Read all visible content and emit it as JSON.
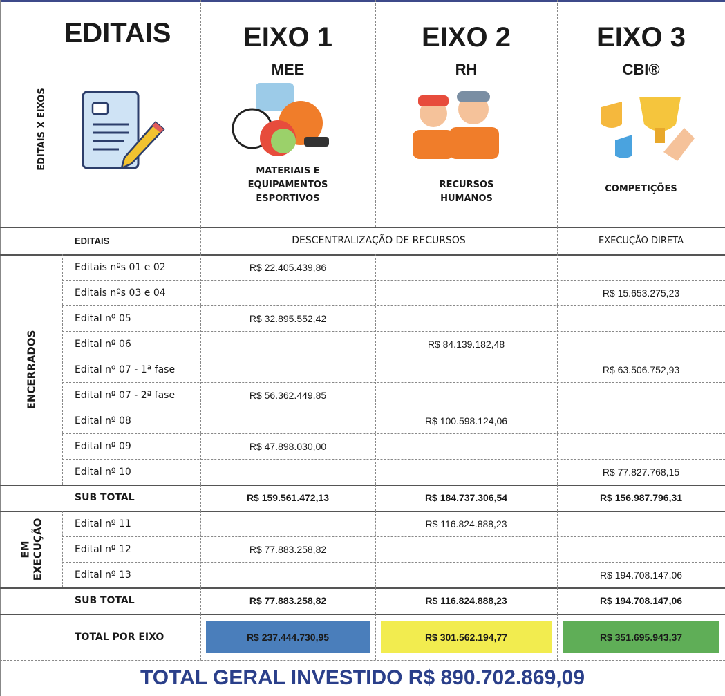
{
  "header": {
    "side_label": "EDITAIS X EIXOS",
    "editais_title": "EDITAIS",
    "axes": [
      {
        "title": "EIXO 1",
        "code": "MEE",
        "description": "MATERIAIS E EQUIPAMENTOS ESPORTIVOS"
      },
      {
        "title": "EIXO 2",
        "code": "RH",
        "description": "RECURSOS HUMANOS"
      },
      {
        "title": "EIXO 3",
        "code": "CBI®",
        "description": "COMPETIÇÕES"
      }
    ]
  },
  "columns": {
    "editais": "EDITAIS",
    "decentralization": "DESCENTRALIZAÇÃO DE RECURSOS",
    "direct": "EXECUÇÃO DIRETA"
  },
  "groups": [
    {
      "label": "ENCERRADOS",
      "rows": [
        {
          "label": "Editais nºs 01 e 02",
          "eixo_1": "R$ 22.405.439,86"
        },
        {
          "label": "Editais nºs 03 e 04",
          "eixo_3": "R$ 15.653.275,23"
        },
        {
          "label": "Edital nº 05",
          "eixo_1": "R$ 32.895.552,42"
        },
        {
          "label": "Edital nº 06",
          "eixo_2": "R$ 84.139.182,48"
        },
        {
          "label": "Edital nº 07 - 1ª fase",
          "eixo_3": "R$ 63.506.752,93"
        },
        {
          "label": "Edital nº 07 - 2ª fase",
          "eixo_1": "R$ 56.362.449,85"
        },
        {
          "label": "Edital nº 08",
          "eixo_2": "R$ 100.598.124,06"
        },
        {
          "label": "Edital nº 09",
          "eixo_1": "R$ 47.898.030,00"
        },
        {
          "label": "Edital nº 10",
          "eixo_3": "R$ 77.827.768,15"
        }
      ],
      "subtotal": {
        "label": "SUB TOTAL",
        "eixo_1": "R$ 159.561.472,13",
        "eixo_2": "R$ 184.737.306,54",
        "eixo_3": "R$ 156.987.796,31"
      }
    },
    {
      "label": "EM EXECUÇÃO",
      "rows": [
        {
          "label": "Edital nº 11",
          "eixo_2": "R$ 116.824.888,23"
        },
        {
          "label": "Edital nº 12",
          "eixo_1": "R$ 77.883.258,82"
        },
        {
          "label": "Edital nº 13",
          "eixo_3": "R$ 194.708.147,06"
        }
      ],
      "subtotal": {
        "label": "SUB TOTAL",
        "eixo_1": "R$ 77.883.258,82",
        "eixo_2": "R$ 116.824.888,23",
        "eixo_3": "R$ 194.708.147,06"
      }
    }
  ],
  "total": {
    "label": "TOTAL POR EIXO",
    "eixo_1": "R$ 237.444.730,95",
    "eixo_2": "R$ 301.562.194,77",
    "eixo_3": "R$ 351.695.943,37"
  },
  "grand_total": "TOTAL GERAL INVESTIDO R$ 890.702.869,09"
}
